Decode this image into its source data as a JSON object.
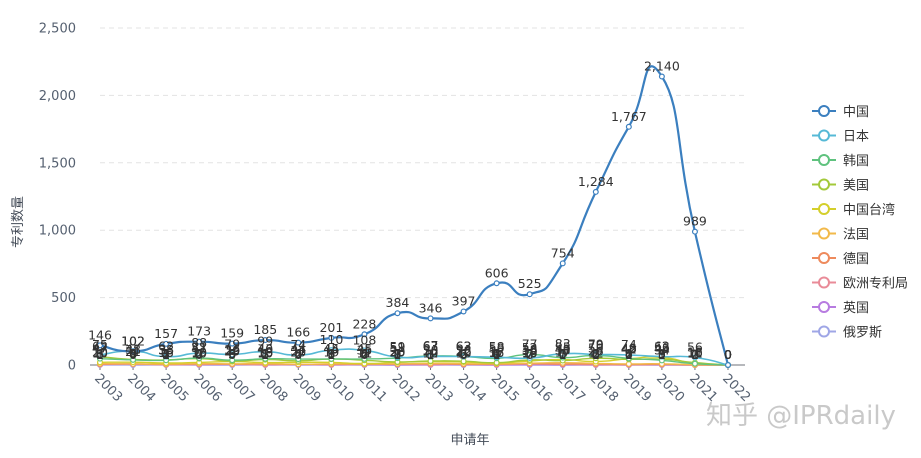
{
  "chart_data": {
    "type": "line",
    "xlabel": "申请年",
    "ylabel": "专利数量",
    "ylim": [
      0,
      2500
    ],
    "yticks": [
      "0",
      "500",
      "1,000",
      "1,500",
      "2,000",
      "2,500"
    ],
    "x": [
      "2003",
      "2004",
      "2005",
      "2006",
      "2007",
      "2008",
      "2009",
      "2010",
      "2011",
      "2012",
      "2013",
      "2014",
      "2015",
      "2016",
      "2017",
      "2018",
      "2019",
      "2020",
      "2021",
      "2022"
    ],
    "grid": true,
    "legend_position": "right",
    "series": [
      {
        "name": "中国",
        "color": "#3b7fbf",
        "width": 2.2,
        "values": [
          146,
          102,
          157,
          173,
          159,
          185,
          166,
          201,
          228,
          384,
          346,
          397,
          606,
          525,
          754,
          1284,
          1767,
          2140,
          989,
          0
        ],
        "labels": [
          "146",
          "102",
          "157",
          "173",
          "159",
          "185",
          "166",
          "201",
          "228",
          "384",
          "346",
          "397",
          "606",
          "525",
          "754",
          "1,284",
          "1,767",
          "2,140",
          "989",
          "0"
        ]
      },
      {
        "name": "日本",
        "color": "#56b9d6",
        "width": 1.6,
        "values": [
          75,
          102,
          62,
          88,
          79,
          99,
          74,
          110,
          108,
          59,
          63,
          62,
          58,
          52,
          83,
          79,
          74,
          62,
          56,
          0
        ],
        "labels": [
          "75",
          "102",
          "62",
          "88",
          "79",
          "99",
          "74",
          "110",
          "108",
          "59",
          "63",
          "62",
          "58",
          "52",
          "83",
          "79",
          "74",
          "62",
          "56",
          "0"
        ]
      },
      {
        "name": "韩国",
        "color": "#5fc27e",
        "width": 1.4,
        "values": [
          47,
          38,
          35,
          51,
          36,
          46,
          44,
          45,
          45,
          51,
          67,
          63,
          50,
          77,
          55,
          70,
          49,
          34,
          10,
          0
        ],
        "labels": [
          "47",
          "38",
          "35",
          "51",
          "36",
          "46",
          "44",
          "45",
          "45",
          "51",
          "67",
          "63",
          "50",
          "77",
          "55",
          "70",
          "49",
          "34",
          "10",
          "0"
        ]
      },
      {
        "name": "美国",
        "color": "#a3c93a",
        "width": 1.4,
        "values": [
          62,
          41,
          38,
          47,
          29,
          40,
          31,
          44,
          35,
          23,
          30,
          28,
          17,
          38,
          33,
          50,
          42,
          43,
          18,
          0
        ],
        "labels": [
          "62",
          "41",
          "38",
          "47",
          "29",
          "40",
          "31",
          "44",
          "35",
          "23",
          "30",
          "28",
          "17",
          "38",
          "33",
          "50",
          "42",
          "43",
          "18",
          "0"
        ]
      },
      {
        "name": "中国台湾",
        "color": "#d4cf2b",
        "width": 1.4,
        "values": [
          20,
          21,
          15,
          19,
          25,
          18,
          20,
          19,
          11,
          20,
          25,
          22,
          15,
          30,
          40,
          26,
          46,
          56,
          11,
          0
        ],
        "labels": [
          "20",
          "21",
          "15",
          "19",
          "25",
          "18",
          "20",
          "19",
          "11",
          "20",
          "25",
          "22",
          "15",
          "30",
          "40",
          "26",
          "46",
          "56",
          "11",
          "0"
        ]
      },
      {
        "name": "法国",
        "color": "#f2b94a",
        "width": 1.4,
        "values": [
          10,
          8,
          7,
          10,
          9,
          10,
          6,
          9,
          8,
          9,
          12,
          10,
          9,
          13,
          17,
          12,
          8,
          9,
          2,
          0
        ],
        "labels": [
          "10",
          "8",
          "7",
          "10",
          "9",
          "10",
          "6",
          "9",
          "8",
          "9",
          "12",
          "10",
          "9",
          "13",
          "17",
          "12",
          "8",
          "9",
          "2",
          "0"
        ]
      },
      {
        "name": "德国",
        "color": "#ee8a5c",
        "width": 1.4,
        "values": [
          6,
          9,
          4,
          8,
          6,
          8,
          5,
          6,
          6,
          7,
          10,
          5,
          6,
          10,
          7,
          8,
          4,
          5,
          1,
          0
        ],
        "labels": [
          "6",
          "9",
          "4",
          "8",
          "6",
          "8",
          "5",
          "6",
          "6",
          "7",
          "10",
          "5",
          "6",
          "10",
          "7",
          "8",
          "4",
          "5",
          "1",
          "0"
        ]
      },
      {
        "name": "欧洲专利局",
        "color": "#e98b98",
        "width": 1.4,
        "values": [
          5,
          6,
          3,
          4,
          5,
          2,
          4,
          3,
          4,
          5,
          3,
          6,
          4,
          7,
          5,
          2,
          2,
          3,
          0,
          0
        ],
        "labels": [
          "5",
          "6",
          "3",
          "4",
          "5",
          "2",
          "4",
          "3",
          "4",
          "5",
          "3",
          "6",
          "4",
          "7",
          "5",
          "2",
          "2",
          "3",
          "0",
          "0"
        ]
      },
      {
        "name": "英国",
        "color": "#b77be0",
        "width": 1.4,
        "values": [
          3,
          4,
          2,
          2,
          3,
          1,
          2,
          1,
          2,
          1,
          1,
          2,
          0,
          2,
          1,
          1,
          0,
          1,
          0,
          0
        ],
        "labels": [
          "3",
          "4",
          "2",
          "2",
          "3",
          "1",
          "2",
          "1",
          "2",
          "1",
          "1",
          "2",
          "0",
          "2",
          "1",
          "1",
          "0",
          "1",
          "0",
          "0"
        ]
      },
      {
        "name": "俄罗斯",
        "color": "#9fa6e6",
        "width": 1.4,
        "values": [
          1,
          0,
          1,
          0,
          0,
          1,
          0,
          1,
          0,
          0,
          1,
          0,
          1,
          0,
          0,
          0,
          1,
          0,
          0,
          0
        ],
        "labels": [
          "1",
          "0",
          "1",
          "0",
          "0",
          "1",
          "0",
          "1",
          "0",
          "0",
          "1",
          "0",
          "1",
          "0",
          "0",
          "0",
          "1",
          "0",
          "0",
          "0"
        ]
      }
    ]
  },
  "watermark": {
    "text": "知乎 @IPRdaily"
  }
}
